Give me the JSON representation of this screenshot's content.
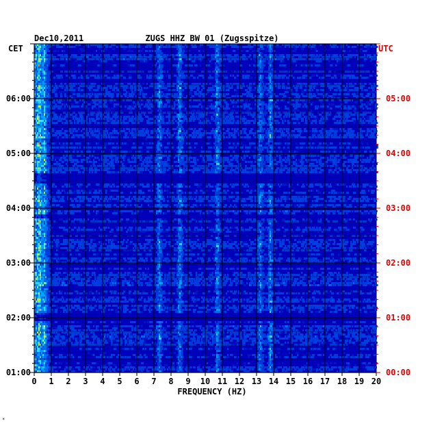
{
  "chart_data": {
    "type": "heatmap",
    "date": "Dec10,2011",
    "title": "ZUGS HHZ BW 01 (Zugsspitze)",
    "xlabel": "FREQUENCY (HZ)",
    "xlim": [
      0,
      20
    ],
    "x_ticks": [
      0,
      1,
      2,
      3,
      4,
      5,
      6,
      7,
      8,
      9,
      10,
      11,
      12,
      13,
      14,
      15,
      16,
      17,
      18,
      19,
      20
    ],
    "left_axis": {
      "label": "CET",
      "ticks": [
        "06:00",
        "05:00",
        "04:00",
        "03:00",
        "02:00",
        "01:00"
      ],
      "tick_hours_from_top": [
        1,
        2,
        3,
        4,
        5,
        6
      ],
      "color": "#000000"
    },
    "right_axis": {
      "label": "UTC",
      "ticks": [
        "05:00",
        "04:00",
        "03:00",
        "02:00",
        "01:00",
        "00:00"
      ],
      "tick_hours_from_top": [
        1,
        2,
        3,
        4,
        5,
        6
      ],
      "color": "#dd0000"
    },
    "time_span_hours": 6,
    "grid": true,
    "strong_frequency_lines_hz": [
      0.3,
      0.6,
      7.3,
      8.5,
      10.7,
      13.2,
      13.8
    ],
    "quiet_time_bands_hours_from_top": [
      [
        2.35,
        2.55
      ],
      [
        3.1,
        3.2
      ],
      [
        4.9,
        5.05
      ]
    ],
    "colors": {
      "background": "#0000bb",
      "grid": "#000000",
      "low": "#0018c8",
      "mid": "#00a8ff",
      "high": "#ffff00",
      "peak": "#ff0000"
    }
  }
}
